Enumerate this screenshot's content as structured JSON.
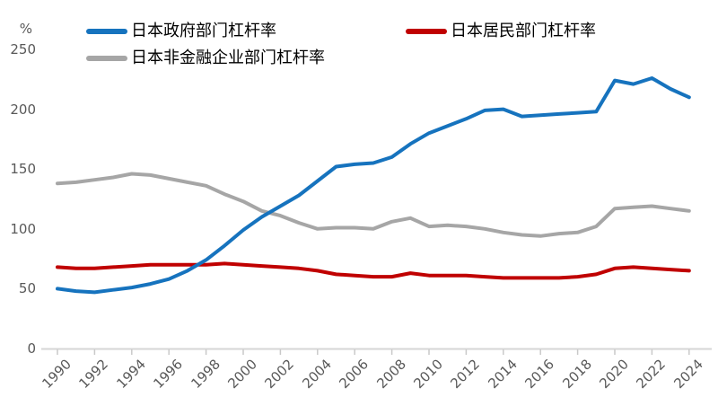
{
  "chart_data": {
    "type": "line",
    "title": "",
    "unit": "%",
    "xlabel": "",
    "ylabel": "%",
    "ylim": [
      0,
      250
    ],
    "yticks": [
      0,
      50,
      100,
      150,
      200,
      250
    ],
    "grid": false,
    "legend_position": "top",
    "axis_color": "#D6D6D6",
    "tick_color": "#C9C9C9",
    "axis_label_color": "#595959",
    "x": [
      1990,
      1991,
      1992,
      1993,
      1994,
      1995,
      1996,
      1997,
      1998,
      1999,
      2000,
      2001,
      2002,
      2003,
      2004,
      2005,
      2006,
      2007,
      2008,
      2009,
      2010,
      2011,
      2012,
      2013,
      2014,
      2015,
      2016,
      2017,
      2018,
      2019,
      2020,
      2021,
      2022,
      2023,
      2024
    ],
    "x_tick_labels": [
      "1990",
      "1992",
      "1994",
      "1996",
      "1998",
      "2000",
      "2002",
      "2004",
      "2006",
      "2008",
      "2010",
      "2012",
      "2014",
      "2016",
      "2018",
      "2020",
      "2022",
      "2024"
    ],
    "series": [
      {
        "name": "日本政府部门杠杆率",
        "color": "#1673BE",
        "values": [
          50,
          48,
          47,
          49,
          51,
          54,
          58,
          65,
          74,
          86,
          99,
          110,
          119,
          128,
          140,
          152,
          154,
          155,
          160,
          171,
          180,
          186,
          192,
          199,
          200,
          194,
          195,
          196,
          197,
          198,
          224,
          221,
          226,
          217,
          210
        ]
      },
      {
        "name": "日本居民部门杠杆率",
        "color": "#C00000",
        "values": [
          68,
          67,
          67,
          68,
          69,
          70,
          70,
          70,
          70,
          71,
          70,
          69,
          68,
          67,
          65,
          62,
          61,
          60,
          60,
          63,
          61,
          61,
          61,
          60,
          59,
          59,
          59,
          59,
          60,
          62,
          67,
          68,
          67,
          66,
          65
        ]
      },
      {
        "name": "日本非金融企业部门杠杆率",
        "color": "#A6A6A6",
        "values": [
          138,
          139,
          141,
          143,
          146,
          145,
          142,
          139,
          136,
          129,
          123,
          115,
          111,
          105,
          100,
          101,
          101,
          100,
          106,
          109,
          102,
          103,
          102,
          100,
          97,
          95,
          94,
          96,
          97,
          102,
          117,
          118,
          119,
          117,
          115
        ]
      }
    ]
  }
}
